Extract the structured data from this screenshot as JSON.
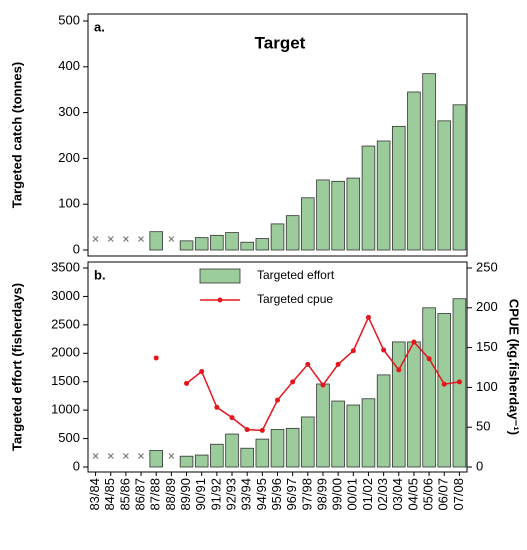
{
  "chart_data": [
    {
      "type": "bar",
      "title": "Target",
      "panel_label": "a.",
      "y_label": "Targeted catch (tonnes)",
      "values": [
        null,
        null,
        null,
        null,
        40,
        null,
        20,
        27,
        32,
        38,
        17,
        25,
        57,
        75,
        114,
        153,
        150,
        157,
        227,
        238,
        270,
        345,
        385,
        282,
        317
      ],
      "color": "#9ccc9c",
      "ylim": [
        0,
        500
      ],
      "yticks": [
        0,
        100,
        200,
        300,
        400,
        500
      ]
    },
    {
      "type": "bar_line",
      "panel_label": "b.",
      "y_label": "Targeted effort (fisherdays)",
      "y2_label": "CPUE (kg.fisherday⁻¹)",
      "categories": [
        "83/84",
        "84/85",
        "85/86",
        "86/87",
        "87/88",
        "88/89",
        "89/90",
        "90/91",
        "91/92",
        "92/93",
        "93/94",
        "94/95",
        "95/96",
        "96/97",
        "97/98",
        "98/99",
        "99/00",
        "00/01",
        "01/02",
        "02/03",
        "03/04",
        "04/05",
        "05/06",
        "06/07",
        "07/08"
      ],
      "series": [
        {
          "name": "Targeted effort",
          "type": "bar",
          "color": "#9ccc9c",
          "values": [
            null,
            null,
            null,
            null,
            290,
            null,
            190,
            210,
            400,
            580,
            330,
            490,
            660,
            680,
            880,
            1460,
            1160,
            1090,
            1200,
            1620,
            2200,
            2200,
            2800,
            2700,
            2960
          ]
        },
        {
          "name": "Targeted cpue",
          "type": "line",
          "axis": "y2",
          "color": "#e3161c",
          "values": [
            null,
            null,
            null,
            null,
            137,
            null,
            105,
            120,
            75,
            62,
            47,
            46,
            84,
            107,
            129,
            103,
            129,
            146,
            188,
            147,
            122,
            157,
            136,
            104,
            107
          ]
        }
      ],
      "ylim": [
        0,
        3500
      ],
      "yticks": [
        0,
        500,
        1000,
        1500,
        2000,
        2500,
        3000,
        3500
      ],
      "y2lim": [
        0,
        250
      ],
      "y2ticks": [
        0,
        50,
        100,
        150,
        200,
        250
      ]
    }
  ]
}
